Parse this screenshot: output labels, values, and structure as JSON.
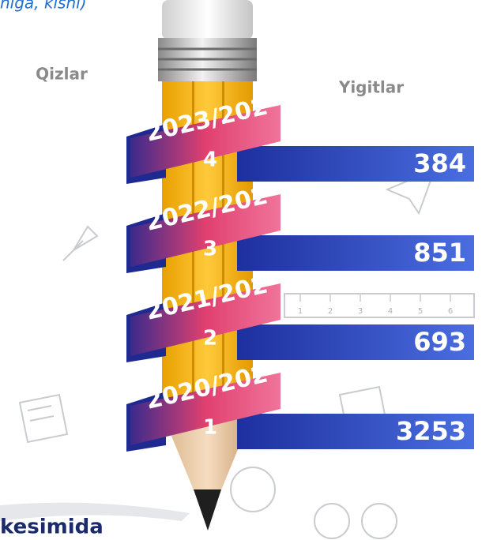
{
  "header": {
    "subtitle": "niga, kishi)"
  },
  "labels": {
    "left": "Qizlar",
    "right": "Yigitlar"
  },
  "rows": [
    {
      "year_lines": [
        "2023/202",
        "4"
      ],
      "value": 384
    },
    {
      "year_lines": [
        "2022/202",
        "3"
      ],
      "value": 851
    },
    {
      "year_lines": [
        "2021/202",
        "2"
      ],
      "value": 693
    },
    {
      "year_lines": [
        "2020/202",
        "1"
      ],
      "value": 3253
    }
  ],
  "ruler": {
    "ticks": [
      "1",
      "2",
      "3",
      "4",
      "5",
      "6"
    ]
  },
  "footer": {
    "text": "kesimida"
  }
}
